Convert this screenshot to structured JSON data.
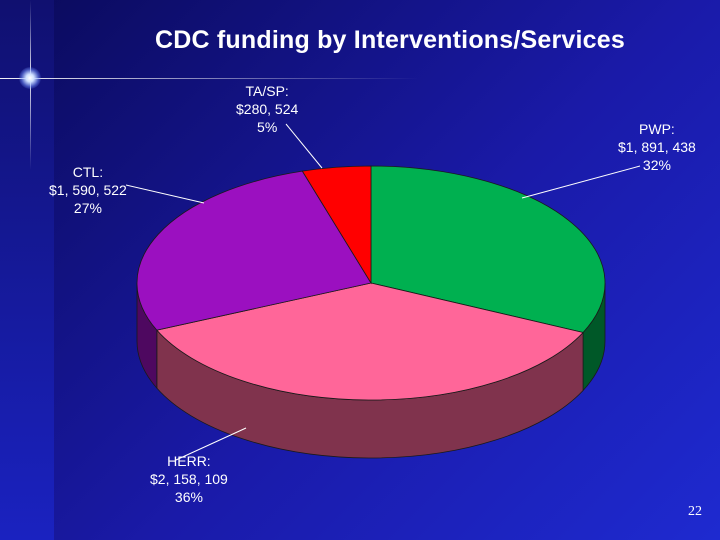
{
  "chart_data": {
    "type": "pie",
    "title": "CDC funding by Interventions/Services",
    "slices": [
      {
        "name": "PWP",
        "value": 1891438,
        "value_label": "$1, 891, 438",
        "percent_label": "32%",
        "color": "#00b050"
      },
      {
        "name": "HERR",
        "value": 2158109,
        "value_label": "$2, 158, 109",
        "percent_label": "36%",
        "color": "#ff6699"
      },
      {
        "name": "CTL",
        "value": 1590522,
        "value_label": "$1, 590, 522",
        "percent_label": "27%",
        "color": "#9b10c0"
      },
      {
        "name": "TA/SP",
        "value": 280524,
        "value_label": "$280, 524",
        "percent_label": "5%",
        "color": "#ff0000"
      }
    ],
    "labels": {
      "pwp": {
        "name": "PWP:",
        "value": "$1, 891, 438",
        "percent": "32%"
      },
      "herr": {
        "name": "HERR:",
        "value": "$2, 158, 109",
        "percent": "36%"
      },
      "ctl": {
        "name": "CTL:",
        "value": "$1, 590, 522",
        "percent": "27%"
      },
      "tasp": {
        "name": "TA/SP:",
        "value": "$280, 524",
        "percent": "5%"
      }
    }
  },
  "slide": {
    "page_number": "22"
  }
}
